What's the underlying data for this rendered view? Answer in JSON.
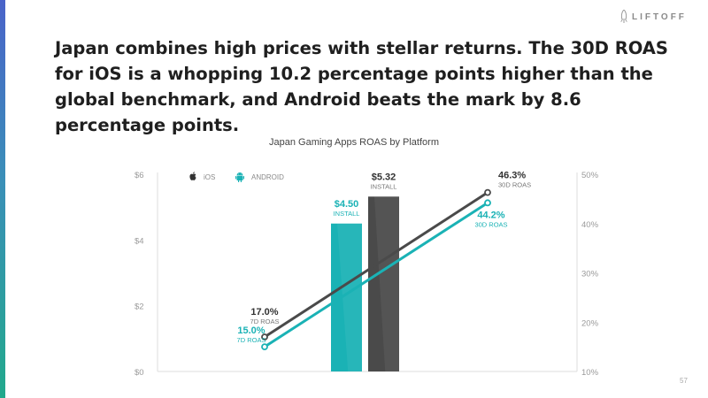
{
  "brand": {
    "name": "LIFTOFF"
  },
  "headline": "Japan combines high prices with stellar returns. The 30D ROAS for iOS is a whopping 10.2 percentage points higher than the global benchmark, and Android beats the mark by 8.6 percentage points.",
  "page_number": "57",
  "colors": {
    "ios": "#4a4a4a",
    "android": "#1ab2b5",
    "grid": "#dddddd",
    "axis_text": "#9a9a9a"
  },
  "legend": [
    {
      "label": "iOS",
      "icon": "apple-icon"
    },
    {
      "label": "ANDROID",
      "icon": "android-icon"
    }
  ],
  "chart_data": {
    "type": "bar+line",
    "title": "Japan Gaming Apps ROAS by Platform",
    "left_axis": {
      "ticks": [
        "$0",
        "$2",
        "$4",
        "$6"
      ],
      "range": [
        0,
        6
      ]
    },
    "right_axis": {
      "ticks": [
        "10%",
        "20%",
        "30%",
        "40%",
        "50%"
      ],
      "range": [
        10,
        50
      ]
    },
    "bars": [
      {
        "series": "ANDROID",
        "value": 4.5,
        "label": "$4.50",
        "sublabel": "INSTALL"
      },
      {
        "series": "iOS",
        "value": 5.32,
        "label": "$5.32",
        "sublabel": "INSTALL"
      }
    ],
    "lines": [
      {
        "series": "iOS",
        "points": [
          {
            "x": "7D",
            "y": 17.0,
            "label": "17.0%",
            "sublabel": "7D ROAS"
          },
          {
            "x": "30D",
            "y": 46.3,
            "label": "46.3%",
            "sublabel": "30D ROAS"
          }
        ]
      },
      {
        "series": "ANDROID",
        "points": [
          {
            "x": "7D",
            "y": 15.0,
            "label": "15.0%",
            "sublabel": "7D ROAS"
          },
          {
            "x": "30D",
            "y": 44.2,
            "label": "44.2%",
            "sublabel": "30D ROAS"
          }
        ]
      }
    ]
  }
}
